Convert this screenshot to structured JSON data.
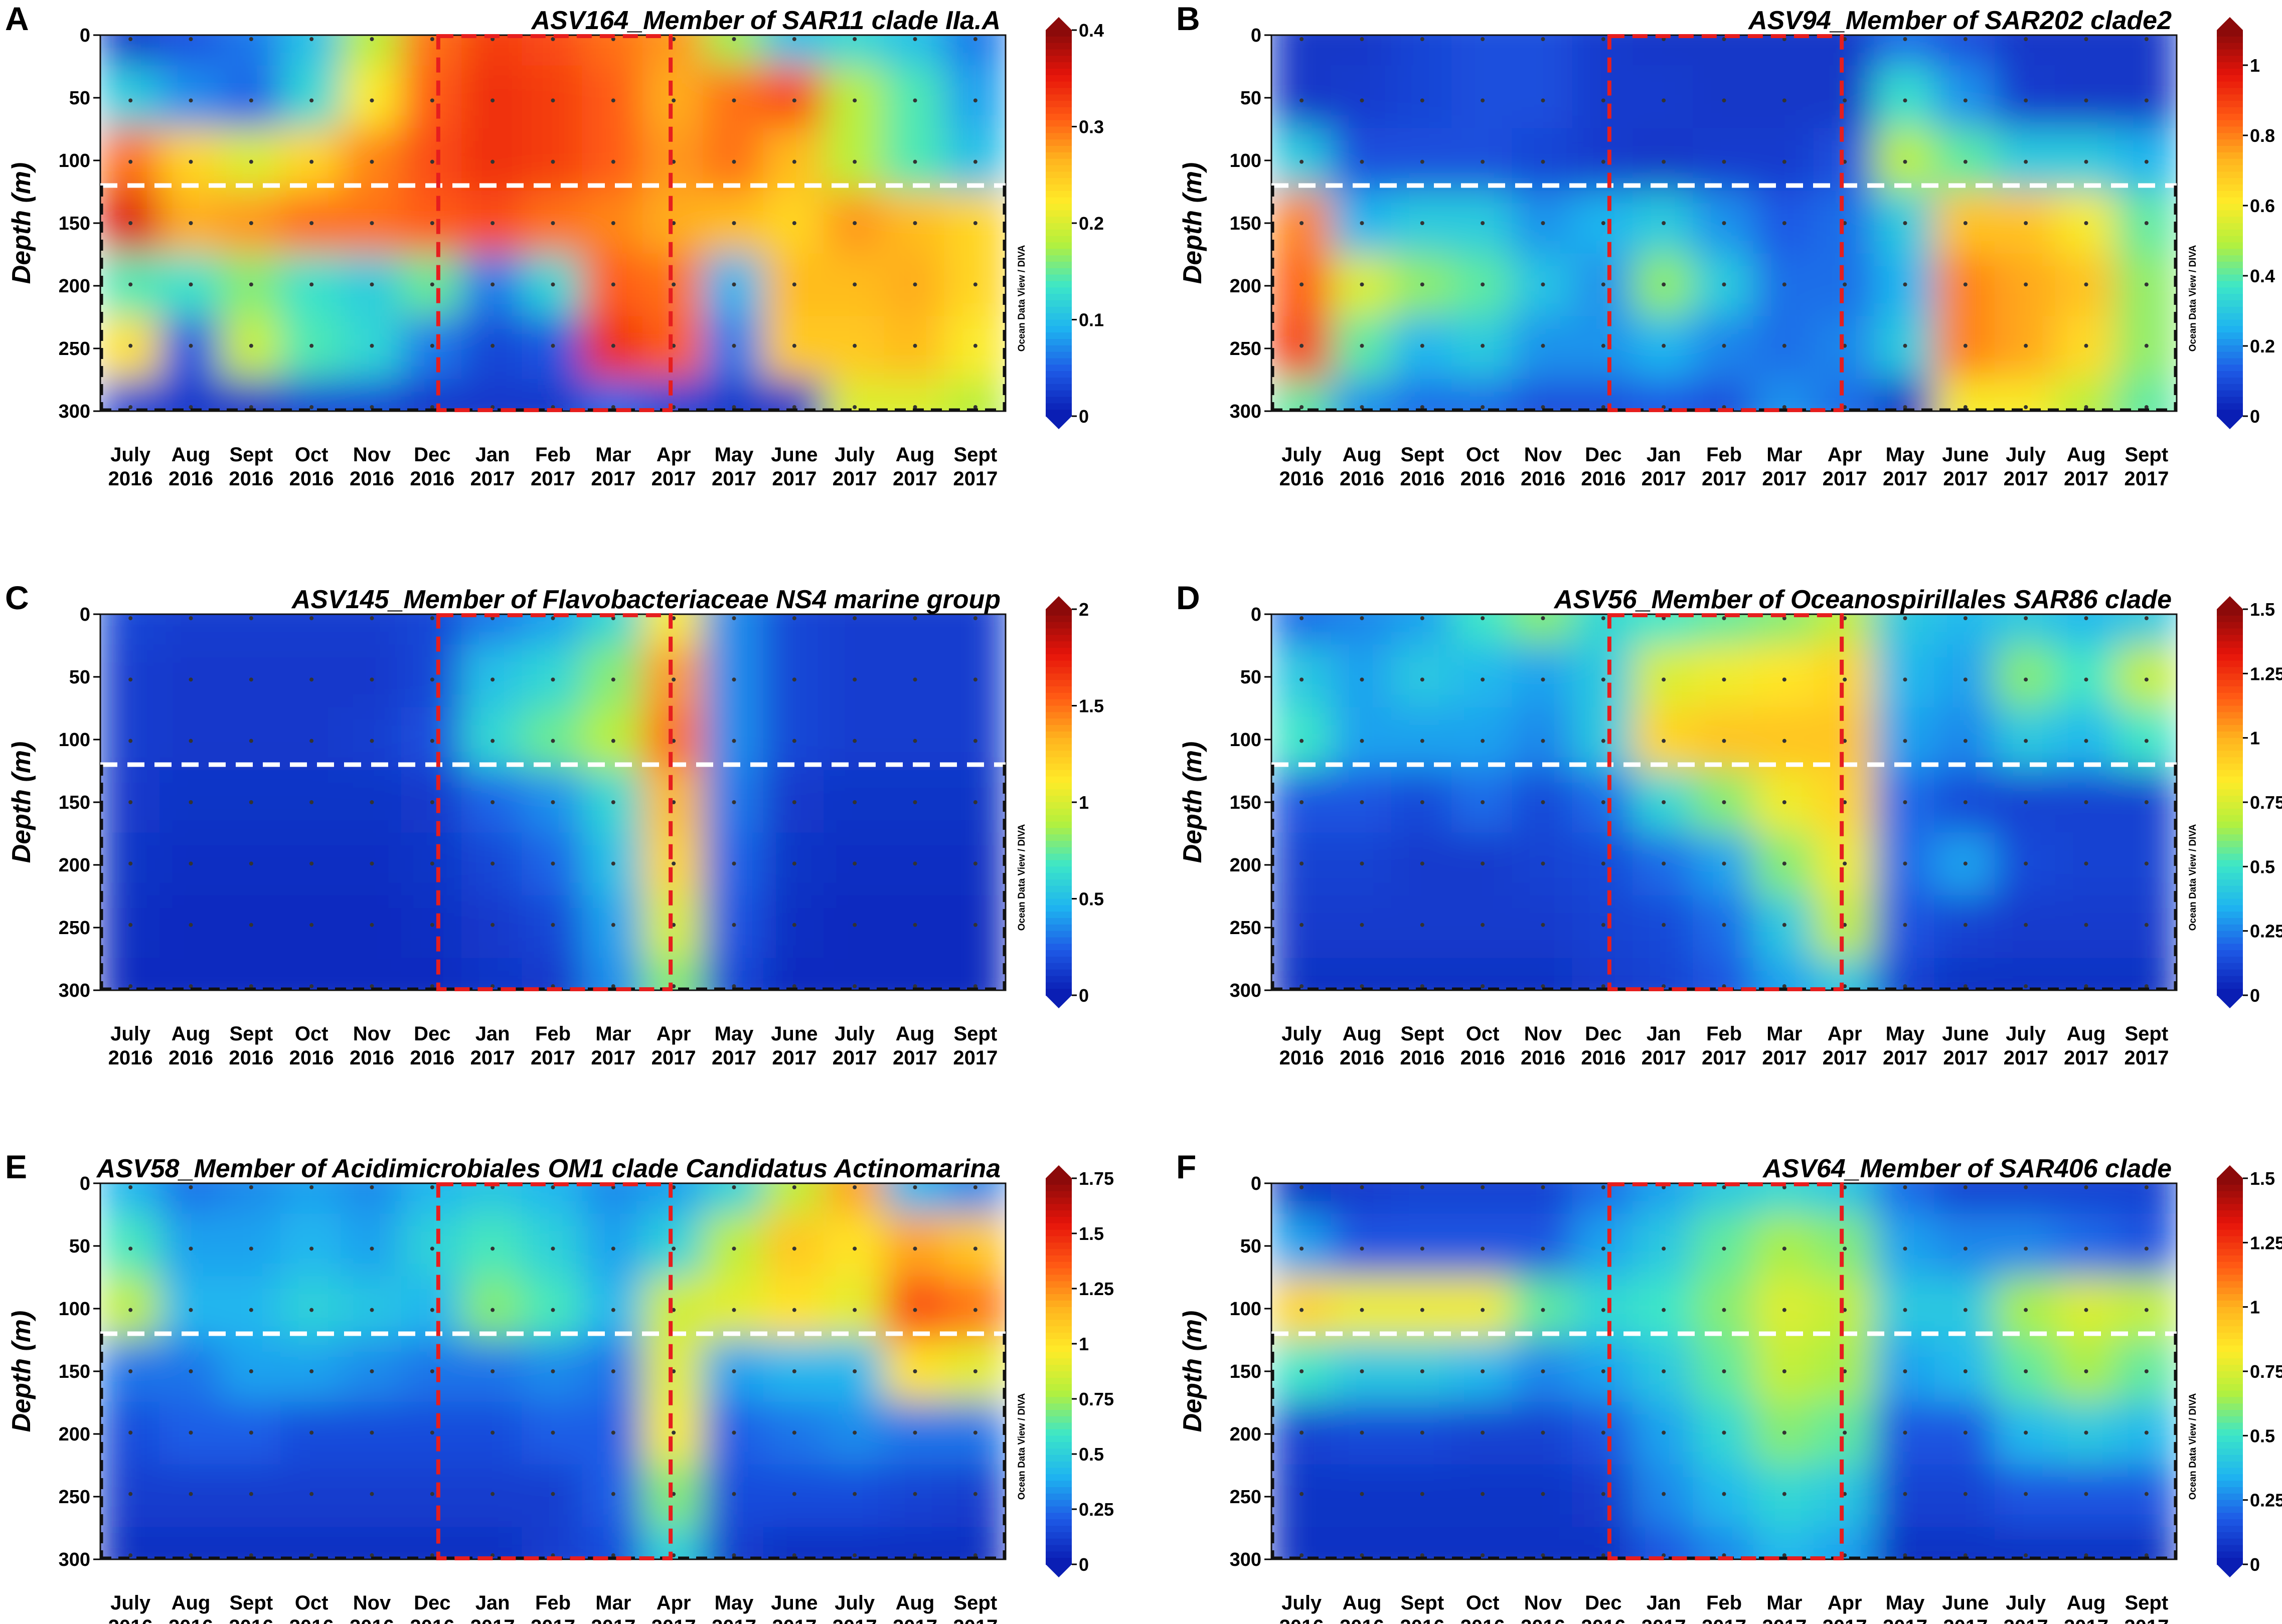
{
  "figure": {
    "y_axis_label": "Depth (m)",
    "watermark": "Ocean Data View / DIVA",
    "depth_ticks": [
      "0",
      "50",
      "100",
      "150",
      "200",
      "250",
      "300"
    ],
    "months": [
      [
        "July",
        "2016"
      ],
      [
        "Aug",
        "2016"
      ],
      [
        "Sept",
        "2016"
      ],
      [
        "Oct",
        "2016"
      ],
      [
        "Nov",
        "2016"
      ],
      [
        "Dec",
        "2016"
      ],
      [
        "Jan",
        "2017"
      ],
      [
        "Feb",
        "2017"
      ],
      [
        "Mar",
        "2017"
      ],
      [
        "Apr",
        "2017"
      ],
      [
        "May",
        "2017"
      ],
      [
        "June",
        "2017"
      ],
      [
        "July",
        "2017"
      ],
      [
        "Aug",
        "2017"
      ],
      [
        "Sept",
        "2017"
      ]
    ],
    "colormap": [
      "#0a1eb4",
      "#1e5ae6",
      "#1eb4f0",
      "#3ce6c8",
      "#b4f03c",
      "#ffeb28",
      "#ffb41e",
      "#ff5a14",
      "#e6140a",
      "#8c0a0a"
    ]
  },
  "chart_data": [
    {
      "letter": "A",
      "type": "heatmap",
      "title": "ASV164_Member of SAR11 clade IIa.A",
      "xlabel": "",
      "ylabel": "Depth (m)",
      "ylim": [
        0,
        300
      ],
      "colorbar_ticks": [
        "0",
        "0.1",
        "0.2",
        "0.3",
        "0.4"
      ],
      "colorbar_range": [
        0,
        0.4
      ],
      "mixed_layer_depth_m": 120,
      "highlight_months": [
        "Dec 2016",
        "Apr 2017"
      ],
      "depths_m": [
        0,
        50,
        100,
        150,
        200,
        250,
        300
      ],
      "values": [
        [
          0.02,
          0.04,
          0.06,
          0.1,
          0.18,
          0.3,
          0.33,
          0.32,
          0.3,
          0.28,
          0.17,
          0.1,
          0.12,
          0.1,
          0.06
        ],
        [
          0.11,
          0.07,
          0.05,
          0.12,
          0.22,
          0.31,
          0.34,
          0.33,
          0.31,
          0.27,
          0.3,
          0.32,
          0.18,
          0.14,
          0.08
        ],
        [
          0.3,
          0.24,
          0.2,
          0.24,
          0.29,
          0.32,
          0.34,
          0.33,
          0.31,
          0.28,
          0.3,
          0.26,
          0.18,
          0.14,
          0.1
        ],
        [
          0.36,
          0.27,
          0.28,
          0.3,
          0.3,
          0.31,
          0.32,
          0.3,
          0.29,
          0.27,
          0.26,
          0.24,
          0.28,
          0.26,
          0.24
        ],
        [
          0.14,
          0.13,
          0.16,
          0.13,
          0.11,
          0.15,
          0.06,
          0.12,
          0.31,
          0.3,
          0.09,
          0.26,
          0.26,
          0.27,
          0.24
        ],
        [
          0.23,
          0.04,
          0.19,
          0.14,
          0.12,
          0.06,
          0.03,
          0.04,
          0.34,
          0.31,
          0.06,
          0.25,
          0.25,
          0.26,
          0.22
        ],
        [
          0.03,
          0.02,
          0.02,
          0.03,
          0.03,
          0.02,
          0.02,
          0.02,
          0.05,
          0.03,
          0.02,
          0.02,
          0.2,
          0.2,
          0.18
        ]
      ]
    },
    {
      "letter": "B",
      "type": "heatmap",
      "title": "ASV94_Member of SAR202 clade2",
      "xlabel": "",
      "ylabel": "Depth (m)",
      "ylim": [
        0,
        300
      ],
      "colorbar_ticks": [
        "0",
        "0.2",
        "0.4",
        "0.6",
        "0.8",
        "1"
      ],
      "colorbar_range": [
        0,
        1.1
      ],
      "mixed_layer_depth_m": 120,
      "highlight_months": [
        "Dec 2016",
        "Apr 2017"
      ],
      "depths_m": [
        0,
        50,
        100,
        150,
        200,
        250,
        300
      ],
      "values": [
        [
          0.05,
          0.05,
          0.08,
          0.1,
          0.1,
          0.06,
          0.05,
          0.05,
          0.05,
          0.05,
          0.15,
          0.1,
          0.05,
          0.05,
          0.05
        ],
        [
          0.05,
          0.06,
          0.08,
          0.1,
          0.1,
          0.06,
          0.06,
          0.05,
          0.05,
          0.05,
          0.35,
          0.2,
          0.06,
          0.05,
          0.05
        ],
        [
          0.3,
          0.1,
          0.1,
          0.1,
          0.08,
          0.06,
          0.05,
          0.06,
          0.06,
          0.1,
          0.5,
          0.4,
          0.3,
          0.3,
          0.25
        ],
        [
          0.8,
          0.25,
          0.3,
          0.3,
          0.2,
          0.25,
          0.3,
          0.2,
          0.12,
          0.15,
          0.3,
          0.7,
          0.7,
          0.6,
          0.4
        ],
        [
          0.85,
          0.55,
          0.45,
          0.4,
          0.28,
          0.2,
          0.45,
          0.3,
          0.15,
          0.15,
          0.25,
          0.8,
          0.75,
          0.7,
          0.45
        ],
        [
          0.9,
          0.4,
          0.25,
          0.3,
          0.2,
          0.2,
          0.25,
          0.18,
          0.15,
          0.18,
          0.3,
          0.8,
          0.75,
          0.65,
          0.45
        ],
        [
          0.4,
          0.2,
          0.15,
          0.15,
          0.1,
          0.1,
          0.12,
          0.1,
          0.2,
          0.15,
          0.05,
          0.6,
          0.6,
          0.5,
          0.4
        ]
      ]
    },
    {
      "letter": "C",
      "type": "heatmap",
      "title": "ASV145_Member of Flavobacteriaceae NS4 marine group",
      "xlabel": "",
      "ylabel": "Depth (m)",
      "ylim": [
        0,
        300
      ],
      "colorbar_ticks": [
        "0",
        "0.5",
        "1",
        "1.5",
        "2"
      ],
      "colorbar_range": [
        0,
        2
      ],
      "mixed_layer_depth_m": 120,
      "highlight_months": [
        "Dec 2016",
        "Apr 2017"
      ],
      "depths_m": [
        0,
        50,
        100,
        150,
        200,
        250,
        300
      ],
      "values": [
        [
          0.15,
          0.12,
          0.12,
          0.12,
          0.12,
          0.15,
          0.3,
          0.4,
          0.6,
          1.1,
          0.35,
          0.15,
          0.12,
          0.12,
          0.12
        ],
        [
          0.12,
          0.1,
          0.1,
          0.1,
          0.1,
          0.15,
          0.5,
          0.6,
          0.8,
          1.4,
          0.35,
          0.15,
          0.12,
          0.12,
          0.12
        ],
        [
          0.12,
          0.1,
          0.1,
          0.1,
          0.12,
          0.18,
          0.6,
          0.75,
          0.9,
          1.5,
          0.35,
          0.15,
          0.12,
          0.12,
          0.12
        ],
        [
          0.1,
          0.08,
          0.08,
          0.08,
          0.08,
          0.1,
          0.25,
          0.35,
          0.6,
          1.3,
          0.3,
          0.1,
          0.08,
          0.08,
          0.08
        ],
        [
          0.08,
          0.06,
          0.06,
          0.06,
          0.06,
          0.08,
          0.15,
          0.25,
          0.5,
          1.2,
          0.25,
          0.08,
          0.06,
          0.06,
          0.06
        ],
        [
          0.06,
          0.05,
          0.05,
          0.05,
          0.05,
          0.06,
          0.1,
          0.15,
          0.4,
          1.0,
          0.2,
          0.06,
          0.05,
          0.05,
          0.05
        ],
        [
          0.05,
          0.05,
          0.05,
          0.05,
          0.05,
          0.05,
          0.08,
          0.1,
          0.35,
          0.8,
          0.15,
          0.05,
          0.05,
          0.05,
          0.05
        ]
      ]
    },
    {
      "letter": "D",
      "type": "heatmap",
      "title": "ASV56_Member of Oceanospirillales SAR86 clade",
      "xlabel": "",
      "ylabel": "Depth (m)",
      "ylim": [
        0,
        300
      ],
      "colorbar_ticks": [
        "0",
        "0.25",
        "0.5",
        "0.75",
        "1",
        "1.25",
        "1.5"
      ],
      "colorbar_range": [
        0,
        1.5
      ],
      "mixed_layer_depth_m": 120,
      "highlight_months": [
        "Dec 2016",
        "Apr 2017"
      ],
      "depths_m": [
        0,
        50,
        100,
        150,
        200,
        250,
        300
      ],
      "values": [
        [
          0.2,
          0.25,
          0.3,
          0.5,
          0.6,
          0.45,
          0.5,
          0.55,
          0.6,
          0.7,
          0.4,
          0.35,
          0.4,
          0.35,
          0.4
        ],
        [
          0.4,
          0.3,
          0.4,
          0.35,
          0.3,
          0.4,
          0.75,
          0.8,
          0.85,
          0.9,
          0.35,
          0.3,
          0.6,
          0.5,
          0.7
        ],
        [
          0.5,
          0.3,
          0.3,
          0.3,
          0.25,
          0.4,
          0.9,
          0.95,
          0.95,
          0.95,
          0.3,
          0.25,
          0.4,
          0.35,
          0.5
        ],
        [
          0.15,
          0.15,
          0.12,
          0.2,
          0.12,
          0.2,
          0.45,
          0.6,
          0.8,
          0.9,
          0.2,
          0.12,
          0.1,
          0.1,
          0.1
        ],
        [
          0.1,
          0.1,
          0.08,
          0.08,
          0.1,
          0.12,
          0.2,
          0.3,
          0.6,
          0.8,
          0.2,
          0.3,
          0.12,
          0.1,
          0.1
        ],
        [
          0.08,
          0.08,
          0.08,
          0.08,
          0.08,
          0.1,
          0.12,
          0.2,
          0.4,
          0.7,
          0.15,
          0.1,
          0.08,
          0.08,
          0.08
        ],
        [
          0.05,
          0.05,
          0.05,
          0.05,
          0.05,
          0.08,
          0.1,
          0.15,
          0.3,
          0.4,
          0.1,
          0.05,
          0.05,
          0.05,
          0.05
        ]
      ]
    },
    {
      "letter": "E",
      "type": "heatmap",
      "title": "ASV58_Member of Acidimicrobiales OM1 clade Candidatus Actinomarina",
      "xlabel": "",
      "ylabel": "Depth (m)",
      "ylim": [
        0,
        300
      ],
      "colorbar_ticks": [
        "0",
        "0.25",
        "0.5",
        "0.75",
        "1",
        "1.25",
        "1.5",
        "1.75"
      ],
      "colorbar_range": [
        0,
        1.75
      ],
      "mixed_layer_depth_m": 120,
      "highlight_months": [
        "Dec 2016",
        "Apr 2017"
      ],
      "depths_m": [
        0,
        50,
        100,
        150,
        200,
        250,
        300
      ],
      "values": [
        [
          0.4,
          0.25,
          0.3,
          0.35,
          0.3,
          0.4,
          0.45,
          0.4,
          0.3,
          0.35,
          0.5,
          0.8,
          1.2,
          0.4,
          0.3
        ],
        [
          0.6,
          0.35,
          0.35,
          0.4,
          0.35,
          0.5,
          0.6,
          0.5,
          0.35,
          0.5,
          0.8,
          1.1,
          1.0,
          1.2,
          1.1
        ],
        [
          0.8,
          0.4,
          0.4,
          0.5,
          0.45,
          0.4,
          0.7,
          0.6,
          0.4,
          0.85,
          0.9,
          1.0,
          0.9,
          1.4,
          1.3
        ],
        [
          0.25,
          0.25,
          0.35,
          0.35,
          0.3,
          0.25,
          0.25,
          0.3,
          0.25,
          0.9,
          0.35,
          0.4,
          0.4,
          1.0,
          0.9
        ],
        [
          0.15,
          0.2,
          0.2,
          0.15,
          0.15,
          0.15,
          0.15,
          0.2,
          0.2,
          0.95,
          0.2,
          0.25,
          0.3,
          0.25,
          0.25
        ],
        [
          0.1,
          0.1,
          0.1,
          0.1,
          0.1,
          0.1,
          0.1,
          0.1,
          0.2,
          0.7,
          0.15,
          0.15,
          0.15,
          0.12,
          0.1
        ],
        [
          0.05,
          0.05,
          0.05,
          0.05,
          0.05,
          0.05,
          0.05,
          0.1,
          0.15,
          0.5,
          0.1,
          0.05,
          0.05,
          0.05,
          0.05
        ]
      ]
    },
    {
      "letter": "F",
      "type": "heatmap",
      "title": "ASV64_Member of SAR406 clade",
      "xlabel": "",
      "ylabel": "Depth (m)",
      "ylim": [
        0,
        300
      ],
      "colorbar_ticks": [
        "0",
        "0.25",
        "0.5",
        "0.75",
        "1",
        "1.25",
        "1.5"
      ],
      "colorbar_range": [
        0,
        1.5
      ],
      "mixed_layer_depth_m": 120,
      "highlight_months": [
        "Dec 2016",
        "Apr 2017"
      ],
      "depths_m": [
        0,
        50,
        100,
        150,
        200,
        250,
        300
      ],
      "values": [
        [
          0.05,
          0.08,
          0.1,
          0.1,
          0.1,
          0.2,
          0.3,
          0.4,
          0.45,
          0.4,
          0.2,
          0.1,
          0.1,
          0.1,
          0.1
        ],
        [
          0.3,
          0.15,
          0.15,
          0.15,
          0.15,
          0.3,
          0.4,
          0.55,
          0.65,
          0.6,
          0.3,
          0.25,
          0.25,
          0.2,
          0.15
        ],
        [
          0.9,
          0.8,
          0.8,
          0.8,
          0.55,
          0.45,
          0.5,
          0.6,
          0.75,
          0.7,
          0.4,
          0.4,
          0.65,
          0.75,
          0.7
        ],
        [
          0.5,
          0.4,
          0.4,
          0.35,
          0.25,
          0.3,
          0.4,
          0.55,
          0.7,
          0.65,
          0.3,
          0.35,
          0.55,
          0.65,
          0.55
        ],
        [
          0.1,
          0.12,
          0.12,
          0.1,
          0.1,
          0.15,
          0.3,
          0.45,
          0.6,
          0.55,
          0.15,
          0.15,
          0.35,
          0.4,
          0.35
        ],
        [
          0.06,
          0.06,
          0.06,
          0.06,
          0.06,
          0.08,
          0.25,
          0.35,
          0.45,
          0.4,
          0.1,
          0.1,
          0.15,
          0.15,
          0.15
        ],
        [
          0.05,
          0.05,
          0.05,
          0.05,
          0.05,
          0.05,
          0.15,
          0.25,
          0.35,
          0.3,
          0.05,
          0.05,
          0.05,
          0.05,
          0.05
        ]
      ]
    }
  ]
}
